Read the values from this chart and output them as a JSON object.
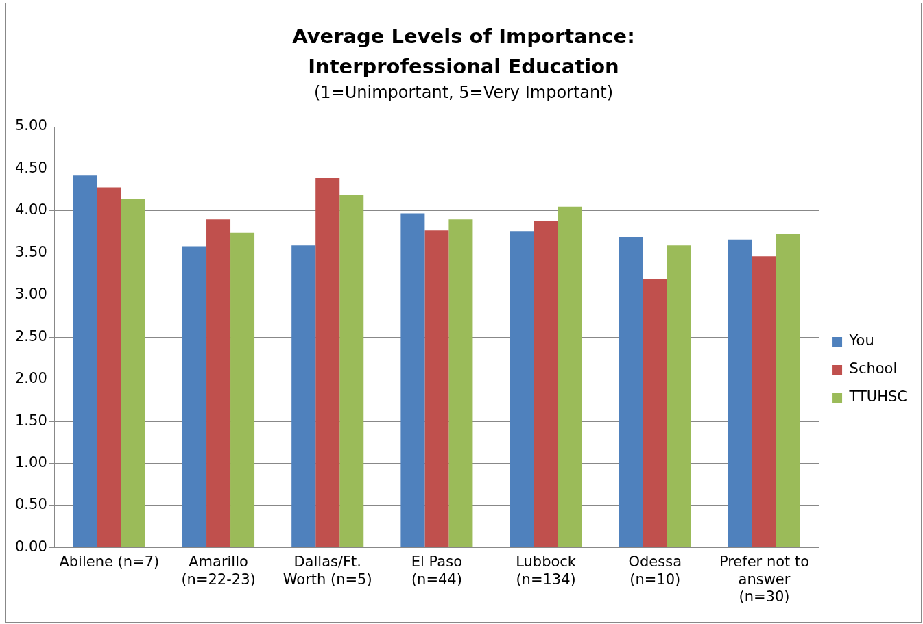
{
  "chart_data": {
    "type": "bar",
    "title": "Average Levels of Importance: Interprofessional Education",
    "subtitle": "(1=Unimportant, 5=Very Important)",
    "categories": [
      "Abilene (n=7)",
      "Amarillo (n=22-23)",
      "Dallas/Ft. Worth (n=5)",
      "El Paso (n=44)",
      "Lubbock (n=134)",
      "Odessa (n=10)",
      "Prefer not to answer (n=30)"
    ],
    "series": [
      {
        "name": "You",
        "color": "#4f81bd",
        "values": [
          4.42,
          3.58,
          3.59,
          3.97,
          3.76,
          3.69,
          3.66
        ]
      },
      {
        "name": "School",
        "color": "#c0504d",
        "values": [
          4.28,
          3.9,
          4.39,
          3.77,
          3.88,
          3.19,
          3.46
        ]
      },
      {
        "name": "TTUHSC",
        "color": "#9bbb59",
        "values": [
          4.14,
          3.74,
          4.19,
          3.9,
          4.05,
          3.59,
          3.73
        ]
      }
    ],
    "ylim": [
      0,
      5
    ],
    "yticks": [
      {
        "value": 0,
        "label": "0.00"
      },
      {
        "value": 0.5,
        "label": "0.50"
      },
      {
        "value": 1,
        "label": "1.00"
      },
      {
        "value": 1.5,
        "label": "1.50"
      },
      {
        "value": 2,
        "label": "2.00"
      },
      {
        "value": 2.5,
        "label": "2.50"
      },
      {
        "value": 3,
        "label": "3.00"
      },
      {
        "value": 3.5,
        "label": "3.50"
      },
      {
        "value": 4,
        "label": "4.00"
      },
      {
        "value": 4.5,
        "label": "4.50"
      },
      {
        "value": 5,
        "label": "5.00"
      }
    ],
    "grid": "y",
    "legend": "right"
  }
}
